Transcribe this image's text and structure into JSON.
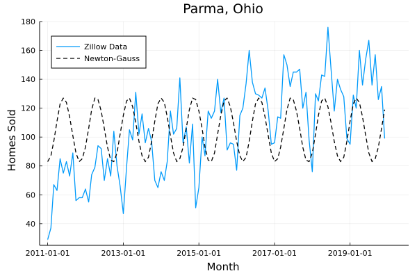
{
  "chart_data": {
    "type": "line",
    "title": "Parma, Ohio",
    "xlabel": "Month",
    "ylabel": "Homes Sold",
    "x_start": "2011-01-01",
    "x_end": "2020-05-01",
    "xlim": [
      "2010-10-15",
      "2020-07-20"
    ],
    "ylim": [
      25,
      180
    ],
    "yticks": [
      40,
      60,
      80,
      100,
      120,
      140,
      160,
      180
    ],
    "xticks": [
      "2011-01-01",
      "2013-01-01",
      "2015-01-01",
      "2017-01-01",
      "2019-01-01"
    ],
    "grid": true,
    "legend_position": "top-left",
    "series": [
      {
        "name": "Zillow Data",
        "color": "#009AFA",
        "style": "solid",
        "values": [
          29,
          37,
          67,
          63,
          85,
          75,
          83,
          73,
          89,
          56,
          58,
          58,
          64,
          55,
          74,
          79,
          94,
          92,
          70,
          85,
          73,
          104,
          80,
          66,
          47,
          79,
          105,
          98,
          131,
          102,
          116,
          96,
          106,
          97,
          70,
          65,
          76,
          70,
          83,
          118,
          102,
          106,
          141,
          96,
          107,
          82,
          109,
          51,
          65,
          100,
          87,
          118,
          113,
          118,
          140,
          117,
          127,
          91,
          96,
          95,
          77,
          115,
          120,
          137,
          160,
          138,
          130,
          129,
          127,
          134,
          118,
          95,
          96,
          114,
          113,
          157,
          150,
          135,
          145,
          145,
          147,
          120,
          131,
          98,
          76,
          130,
          125,
          143,
          142,
          176,
          147,
          118,
          140,
          133,
          128,
          99,
          95,
          129,
          120,
          160,
          136,
          154,
          167,
          136,
          157,
          126,
          135,
          99
        ],
        "_note": "",
        "marker": "none"
      },
      {
        "name": "Newton-Gauss",
        "color": "#000000",
        "style": "dashed",
        "values": [
          83,
          87,
          97,
          111,
          123,
          127,
          124,
          114,
          101,
          89,
          83,
          85,
          93,
          106,
          119,
          127,
          126,
          118,
          106,
          93,
          84,
          83,
          89,
          102,
          115,
          125,
          127,
          121,
          110,
          97,
          87,
          83,
          86,
          97,
          111,
          123,
          127,
          124,
          114,
          101,
          89,
          83,
          85,
          93,
          106,
          119,
          127,
          126,
          118,
          106,
          93,
          84,
          83,
          89,
          102,
          115,
          125,
          127,
          121,
          110,
          97,
          87,
          83,
          86,
          97,
          111,
          123,
          127,
          124,
          114,
          101,
          89,
          83,
          85,
          93,
          106,
          119,
          127,
          126,
          118,
          106,
          93,
          84,
          83,
          89,
          102,
          115,
          125,
          127,
          121,
          110,
          97,
          87,
          83,
          86,
          97,
          111,
          123,
          127,
          124,
          114,
          101,
          89,
          83,
          85,
          93,
          106,
          119
        ]
      }
    ]
  }
}
